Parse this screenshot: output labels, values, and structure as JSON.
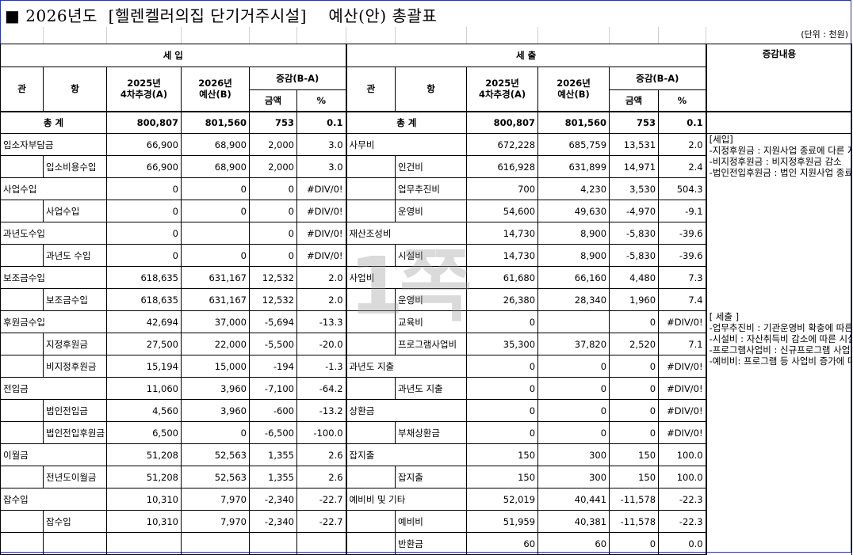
{
  "title": "■ 2026년도  [헬렌켈러의집 단기거주시설]    예산(안) 총괄표",
  "unit": "(단위 : 천원)",
  "watermark": "1쪽",
  "income": {
    "label": "세 입",
    "col_gwan": "관",
    "col_hang": "항",
    "col_prev": "2025년\n4차추경(A)",
    "col_curr": "2026년\n예산(B)",
    "col_diff": "증감(B-A)",
    "col_amount": "금액",
    "col_pct": "%"
  },
  "expense": {
    "label": "세 출",
    "col_gwan": "관",
    "col_hang": "항",
    "col_prev": "2025년\n4차추경(A)",
    "col_curr": "2026년\n예산(B)",
    "col_diff": "증감(B-A)",
    "col_amount": "금액",
    "col_pct": "%"
  },
  "notes_header": "증감내용",
  "total": {
    "label": "총 계",
    "in": [
      "800,807",
      "801,560",
      "753",
      "0.1"
    ],
    "ex": [
      "800,807",
      "801,560",
      "753",
      "0.1"
    ]
  },
  "rows": [
    {
      "in_gwan": "입소자부담금",
      "in_hang": "",
      "in": [
        "66,900",
        "68,900",
        "2,000",
        "3.0"
      ],
      "ex_gwan": "사무비",
      "ex_hang": "",
      "ex": [
        "672,228",
        "685,759",
        "13,531",
        "2.0"
      ]
    },
    {
      "in_gwan": "",
      "in_hang": "입소비용수입",
      "in": [
        "66,900",
        "68,900",
        "2,000",
        "3.0"
      ],
      "ex_gwan": "",
      "ex_hang": "인건비",
      "ex": [
        "616,928",
        "631,899",
        "14,971",
        "2.4"
      ]
    },
    {
      "in_gwan": "사업수입",
      "in_hang": "",
      "in": [
        "0",
        "0",
        "0",
        "#DIV/0!"
      ],
      "ex_gwan": "",
      "ex_hang": "업무추진비",
      "ex": [
        "700",
        "4,230",
        "3,530",
        "504.3"
      ]
    },
    {
      "in_gwan": "",
      "in_hang": "사업수입",
      "in": [
        "0",
        "0",
        "0",
        "#DIV/0!"
      ],
      "ex_gwan": "",
      "ex_hang": "운영비",
      "ex": [
        "54,600",
        "49,630",
        "-4,970",
        "-9.1"
      ]
    },
    {
      "in_gwan": "과년도수입",
      "in_hang": "",
      "in": [
        "0",
        "",
        "0",
        "#DIV/0!"
      ],
      "ex_gwan": "재산조성비",
      "ex_hang": "",
      "ex": [
        "14,730",
        "8,900",
        "-5,830",
        "-39.6"
      ]
    },
    {
      "in_gwan": "",
      "in_hang": "과년도 수입",
      "in": [
        "0",
        "0",
        "0",
        "#DIV/0!"
      ],
      "ex_gwan": "",
      "ex_hang": "시설비",
      "ex": [
        "14,730",
        "8,900",
        "-5,830",
        "-39.6"
      ]
    },
    {
      "in_gwan": "보조금수입",
      "in_hang": "",
      "in": [
        "618,635",
        "631,167",
        "12,532",
        "2.0"
      ],
      "ex_gwan": "사업비",
      "ex_hang": "",
      "ex": [
        "61,680",
        "66,160",
        "4,480",
        "7.3"
      ]
    },
    {
      "in_gwan": "",
      "in_hang": "보조금수입",
      "in": [
        "618,635",
        "631,167",
        "12,532",
        "2.0"
      ],
      "ex_gwan": "",
      "ex_hang": "운영비",
      "ex": [
        "26,380",
        "28,340",
        "1,960",
        "7.4"
      ]
    },
    {
      "in_gwan": "후원금수입",
      "in_hang": "",
      "in": [
        "42,694",
        "37,000",
        "-5,694",
        "-13.3"
      ],
      "ex_gwan": "",
      "ex_hang": "교육비",
      "ex": [
        "0",
        "",
        "0",
        "#DIV/0!"
      ]
    },
    {
      "in_gwan": "",
      "in_hang": "지정후원금",
      "in": [
        "27,500",
        "22,000",
        "-5,500",
        "-20.0"
      ],
      "ex_gwan": "",
      "ex_hang": "프로그램사업비",
      "ex": [
        "35,300",
        "37,820",
        "2,520",
        "7.1"
      ]
    },
    {
      "in_gwan": "",
      "in_hang": "비지정후원금",
      "in": [
        "15,194",
        "15,000",
        "-194",
        "-1.3"
      ],
      "ex_gwan": "과년도 지출",
      "ex_hang": "",
      "ex": [
        "0",
        "0",
        "0",
        "#DIV/0!"
      ]
    },
    {
      "in_gwan": "전입금",
      "in_hang": "",
      "in": [
        "11,060",
        "3,960",
        "-7,100",
        "-64.2"
      ],
      "ex_gwan": "",
      "ex_hang": "과년도 지출",
      "ex": [
        "0",
        "0",
        "0",
        "#DIV/0!"
      ]
    },
    {
      "in_gwan": "",
      "in_hang": "법인전입금",
      "in": [
        "4,560",
        "3,960",
        "-600",
        "-13.2"
      ],
      "ex_gwan": "상환금",
      "ex_hang": "",
      "ex": [
        "0",
        "0",
        "0",
        "#DIV/0!"
      ]
    },
    {
      "in_gwan": "",
      "in_hang": "법인전입후원금",
      "in": [
        "6,500",
        "0",
        "-6,500",
        "-100.0"
      ],
      "ex_gwan": "",
      "ex_hang": "부채상환금",
      "ex": [
        "0",
        "0",
        "0",
        "#DIV/0!"
      ]
    },
    {
      "in_gwan": "이월금",
      "in_hang": "",
      "in": [
        "51,208",
        "52,563",
        "1,355",
        "2.6"
      ],
      "ex_gwan": "잡지출",
      "ex_hang": "",
      "ex": [
        "150",
        "300",
        "150",
        "100.0"
      ]
    },
    {
      "in_gwan": "",
      "in_hang": "전년도이월금",
      "in": [
        "51,208",
        "52,563",
        "1,355",
        "2.6"
      ],
      "ex_gwan": "",
      "ex_hang": "잡지출",
      "ex": [
        "150",
        "300",
        "150",
        "100.0"
      ]
    },
    {
      "in_gwan": "잡수입",
      "in_hang": "",
      "in": [
        "10,310",
        "7,970",
        "-2,340",
        "-22.7"
      ],
      "ex_gwan": "예비비 및 기타",
      "ex_hang": "",
      "ex": [
        "52,019",
        "40,441",
        "-11,578",
        "-22.3"
      ]
    },
    {
      "in_gwan": "",
      "in_hang": "잡수입",
      "in": [
        "10,310",
        "7,970",
        "-2,340",
        "-22.7"
      ],
      "ex_gwan": "",
      "ex_hang": "예비비",
      "ex": [
        "51,959",
        "40,381",
        "-11,578",
        "-22.3"
      ]
    },
    {
      "in_gwan": "",
      "in_hang": "",
      "in": [
        "",
        "",
        "",
        ""
      ],
      "ex_gwan": "",
      "ex_hang": "반환금",
      "ex": [
        "60",
        "60",
        "0",
        "0.0"
      ]
    }
  ],
  "notes_income": [
    "[세입]",
    "-지정후원금 : 지원사업 종료에 다른 지정후원감소",
    "-비지정후원금 : 비지정후원금 감소",
    "-법인전입후원금 : 법인 지원사업 종료에 따른 감소"
  ],
  "notes_expense": [
    "[ 세출 ]",
    "-업무추진비 : 기관운영비 확충에 따른 증가",
    "-시설비 : 자산취득비 감소에 따른 시설비 감소            -운영비 : 생계비 증가로 운영비 증가",
    "-프로그램사업비 : 신규프로그램 사업비 증가에 따른 사업비 증가",
    "-예비비: 프로그램 등 사업비 증가에 따른 예비비 감소"
  ]
}
